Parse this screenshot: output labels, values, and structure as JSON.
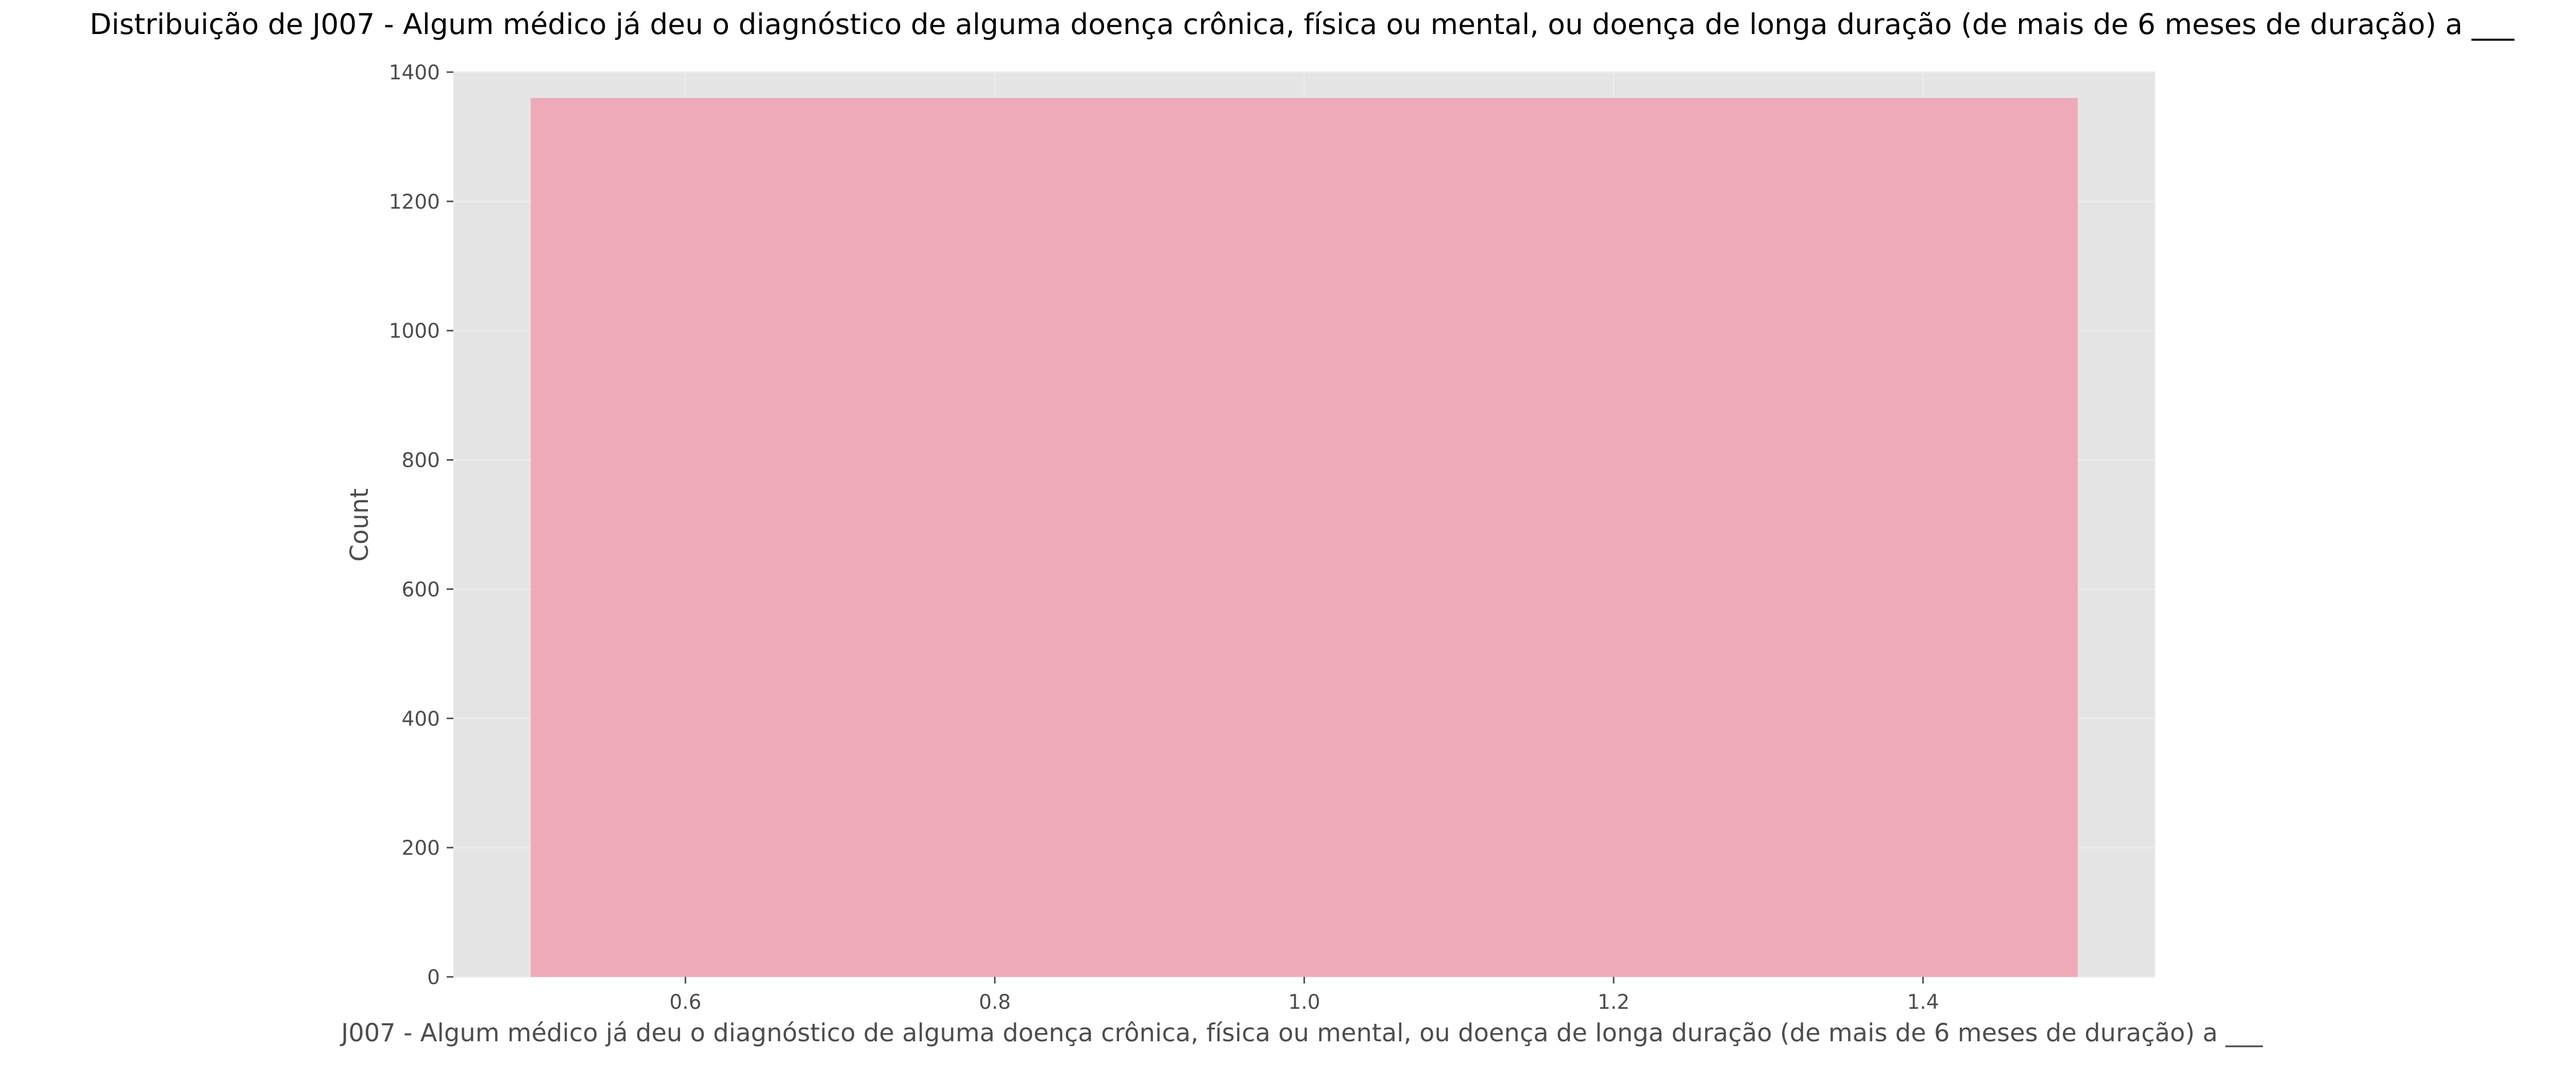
{
  "chart_data": {
    "type": "bar",
    "title": "Distribuição de J007 - Algum médico já deu o diagnóstico de alguma doença crônica, física ou mental, ou doença de longa duração (de mais de 6 meses de duração) a ___",
    "xlabel": "J007 - Algum médico já deu o diagnóstico de alguma doença crônica, física ou mental, ou doença de longa duração (de mais de 6 meses de duração) a ___",
    "ylabel": "Count",
    "xlim": [
      0.45,
      1.55
    ],
    "ylim": [
      0,
      1400
    ],
    "x_ticks": [
      0.6,
      0.8,
      1.0,
      1.2,
      1.4
    ],
    "x_tick_labels": [
      "0.6",
      "0.8",
      "1.0",
      "1.2",
      "1.4"
    ],
    "y_ticks": [
      0,
      200,
      400,
      600,
      800,
      1000,
      1200,
      1400
    ],
    "y_tick_labels": [
      "0",
      "200",
      "400",
      "600",
      "800",
      "1000",
      "1200",
      "1400"
    ],
    "bars": [
      {
        "x_start": 0.5,
        "x_end": 1.5,
        "value": 1360
      }
    ],
    "grid": true,
    "colors": {
      "plot_background": "#e5e5e5",
      "grid": "#ececec",
      "bar": "#eeaab8",
      "tick_text": "#4d4d4d",
      "title_text": "#000000"
    }
  }
}
